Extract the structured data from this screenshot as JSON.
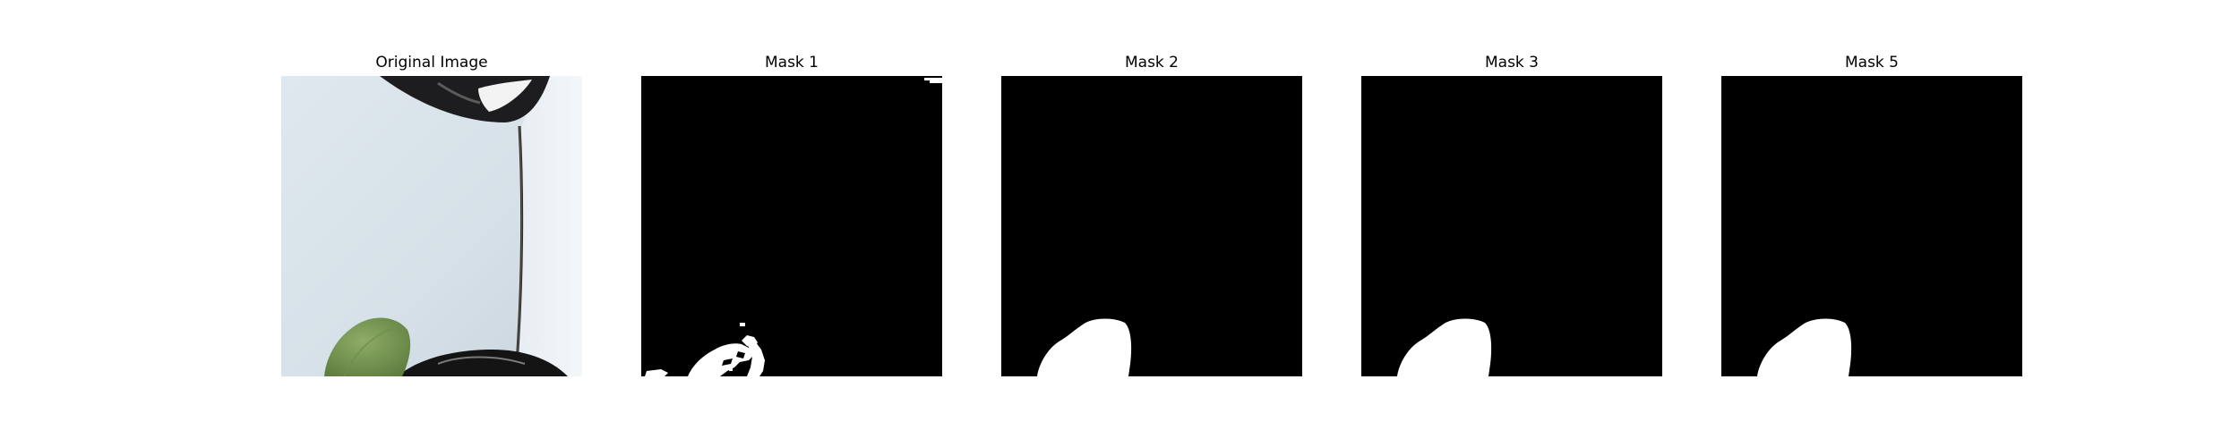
{
  "panels": [
    {
      "title": "Original Image"
    },
    {
      "title": "Mask 1"
    },
    {
      "title": "Mask 2"
    },
    {
      "title": "Mask 3"
    },
    {
      "title": "Mask 5"
    }
  ],
  "colors": {
    "background": "#ffffff",
    "mask_background": "#000000",
    "mask_foreground": "#ffffff",
    "photo_wall": "#d9e3ea",
    "photo_leaf": "#7f9c5b",
    "photo_dark": "#1c1c1c"
  }
}
